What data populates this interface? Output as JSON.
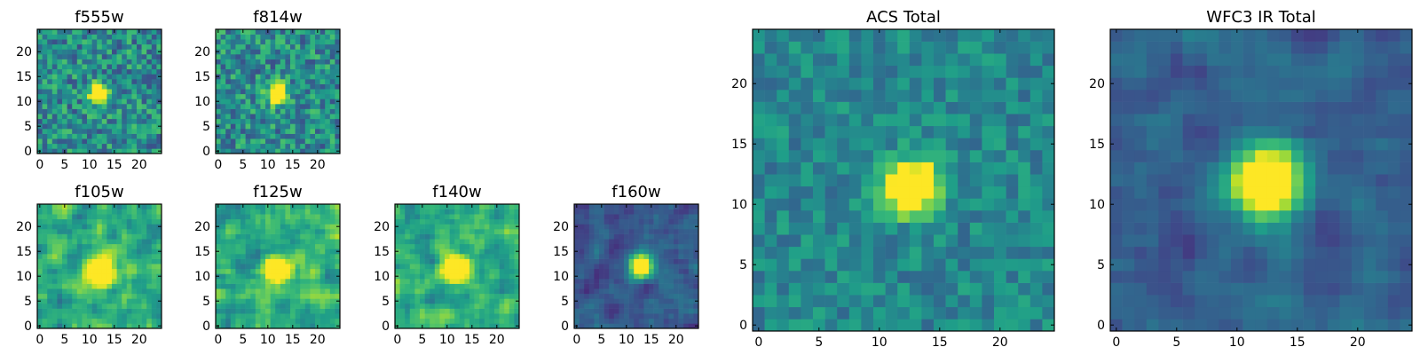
{
  "chart_data": [
    {
      "type": "heatmap",
      "title": "f555w",
      "xlim": [
        0,
        25
      ],
      "ylim": [
        0,
        25
      ],
      "xticks": [
        "0",
        "5",
        "10",
        "15",
        "20"
      ],
      "yticks": [
        "0",
        "5",
        "10",
        "15",
        "20"
      ],
      "colormap": "viridis",
      "source": {
        "center": [
          12,
          11.5
        ],
        "sigma": 1.3,
        "noise": 0.24,
        "background": 0.48,
        "smooth": 0
      }
    },
    {
      "type": "heatmap",
      "title": "f814w",
      "xlim": [
        0,
        25
      ],
      "ylim": [
        0,
        25
      ],
      "xticks": [
        "0",
        "5",
        "10",
        "15",
        "20"
      ],
      "yticks": [
        "0",
        "5",
        "10",
        "15",
        "20"
      ],
      "colormap": "viridis",
      "source": {
        "center": [
          12,
          11.5
        ],
        "sigma": 1.3,
        "noise": 0.24,
        "background": 0.48,
        "smooth": 0
      }
    },
    {
      "type": "heatmap",
      "title": "f105w",
      "xlim": [
        0,
        25
      ],
      "ylim": [
        0,
        25
      ],
      "xticks": [
        "0",
        "5",
        "10",
        "15",
        "20"
      ],
      "yticks": [
        "0",
        "5",
        "10",
        "15",
        "20"
      ],
      "colormap": "viridis",
      "source": {
        "center": [
          12,
          11
        ],
        "sigma": 2.0,
        "noise": 0.2,
        "background": 0.6,
        "smooth": 1
      }
    },
    {
      "type": "heatmap",
      "title": "f125w",
      "xlim": [
        0,
        25
      ],
      "ylim": [
        0,
        25
      ],
      "xticks": [
        "0",
        "5",
        "10",
        "15",
        "20"
      ],
      "yticks": [
        "0",
        "5",
        "10",
        "15",
        "20"
      ],
      "colormap": "viridis",
      "source": {
        "center": [
          12,
          11
        ],
        "sigma": 1.8,
        "noise": 0.2,
        "background": 0.62,
        "smooth": 1
      }
    },
    {
      "type": "heatmap",
      "title": "f140w",
      "xlim": [
        0,
        25
      ],
      "ylim": [
        0,
        25
      ],
      "xticks": [
        "0",
        "5",
        "10",
        "15",
        "20"
      ],
      "yticks": [
        "0",
        "5",
        "10",
        "15",
        "20"
      ],
      "colormap": "viridis",
      "source": {
        "center": [
          12,
          11.5
        ],
        "sigma": 1.6,
        "noise": 0.18,
        "background": 0.62,
        "smooth": 1
      }
    },
    {
      "type": "heatmap",
      "title": "f160w",
      "xlim": [
        0,
        25
      ],
      "ylim": [
        0,
        25
      ],
      "xticks": [
        "0",
        "5",
        "10",
        "15",
        "20"
      ],
      "yticks": [
        "0",
        "5",
        "10",
        "15",
        "20"
      ],
      "colormap": "viridis",
      "source": {
        "center": [
          13,
          12
        ],
        "sigma": 1.6,
        "noise": 0.12,
        "background": 0.28,
        "smooth": 1
      }
    },
    {
      "type": "heatmap",
      "title": "ACS Total",
      "xlim": [
        0,
        25
      ],
      "ylim": [
        0,
        25
      ],
      "xticks": [
        "0",
        "5",
        "10",
        "15",
        "20"
      ],
      "yticks": [
        "0",
        "5",
        "10",
        "15",
        "20"
      ],
      "colormap": "viridis",
      "source": {
        "center": [
          12.5,
          11.5
        ],
        "sigma": 1.5,
        "noise": 0.14,
        "background": 0.46,
        "smooth": 0
      }
    },
    {
      "type": "heatmap",
      "title": "WFC3 IR Total",
      "xlim": [
        0,
        25
      ],
      "ylim": [
        0,
        25
      ],
      "xticks": [
        "0",
        "5",
        "10",
        "15",
        "20"
      ],
      "yticks": [
        "0",
        "5",
        "10",
        "15",
        "20"
      ],
      "colormap": "viridis",
      "source": {
        "center": [
          12.5,
          12
        ],
        "sigma": 2.0,
        "noise": 0.11,
        "background": 0.3,
        "smooth": 1
      }
    }
  ]
}
